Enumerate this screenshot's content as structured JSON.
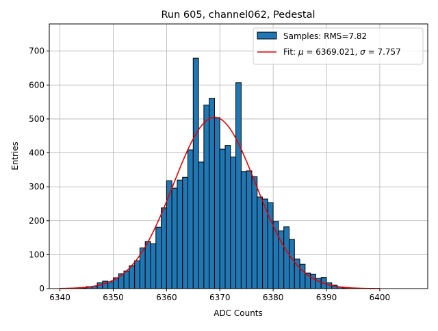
{
  "chart_data": {
    "type": "bar",
    "title": "Run 605, channel062, Pedestal",
    "xlabel": "ADC Counts",
    "ylabel": "Entries",
    "xlim": [
      6338,
      6409
    ],
    "ylim": [
      0,
      780
    ],
    "xticks": [
      6340,
      6350,
      6360,
      6370,
      6380,
      6390,
      6400
    ],
    "yticks": [
      0,
      100,
      200,
      300,
      400,
      500,
      600,
      700
    ],
    "grid": true,
    "legend_position": "top-right",
    "bin_width": 1,
    "series": [
      {
        "name": "Samples: RMS=7.82",
        "kind": "histogram",
        "color": "#1f77b4",
        "edge_color": "#000000",
        "bin_starts": [
          6343,
          6344,
          6345,
          6346,
          6347,
          6348,
          6349,
          6350,
          6351,
          6352,
          6353,
          6354,
          6355,
          6356,
          6357,
          6358,
          6359,
          6360,
          6361,
          6362,
          6363,
          6364,
          6365,
          6366,
          6367,
          6368,
          6369,
          6370,
          6371,
          6372,
          6373,
          6374,
          6375,
          6376,
          6377,
          6378,
          6379,
          6380,
          6381,
          6382,
          6383,
          6384,
          6385,
          6386,
          6387,
          6388,
          6389,
          6390,
          6391,
          6392,
          6393
        ],
        "counts": [
          1,
          2,
          6,
          7,
          17,
          22,
          20,
          32,
          44,
          52,
          67,
          82,
          120,
          139,
          132,
          181,
          238,
          318,
          296,
          320,
          328,
          409,
          679,
          373,
          541,
          561,
          504,
          411,
          422,
          388,
          607,
          345,
          347,
          330,
          270,
          264,
          253,
          198,
          170,
          182,
          145,
          87,
          72,
          46,
          42,
          30,
          33,
          17,
          10,
          5,
          2
        ]
      },
      {
        "name": "Fit: μ = 6369.021, σ = 7.757",
        "kind": "gaussian",
        "color": "#e60000",
        "mu": 6369.021,
        "sigma": 7.757,
        "amplitude": 505,
        "x_range": [
          6340,
          6400
        ]
      }
    ],
    "legend": {
      "entries": [
        {
          "label_prefix": "Samples: RMS=7.82",
          "label_parts": []
        },
        {
          "label_prefix": "Fit: ",
          "label_parts": [
            "μ",
            " = 6369.021, ",
            "σ",
            " = 7.757"
          ]
        }
      ]
    }
  }
}
